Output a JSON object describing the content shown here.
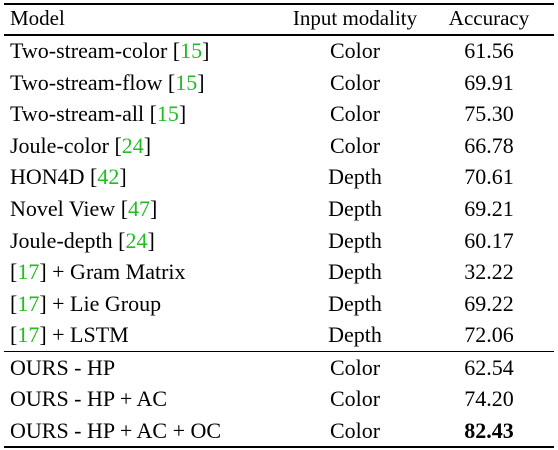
{
  "header": {
    "model": "Model",
    "modality": "Input modality",
    "accuracy": "Accuracy"
  },
  "baselines": [
    {
      "pre": "Two-stream-color [",
      "ref": "15",
      "post": "]",
      "modality": "Color",
      "accuracy": "61.56"
    },
    {
      "pre": "Two-stream-flow [",
      "ref": "15",
      "post": "]",
      "modality": "Color",
      "accuracy": "69.91"
    },
    {
      "pre": "Two-stream-all [",
      "ref": "15",
      "post": "]",
      "modality": "Color",
      "accuracy": "75.30"
    },
    {
      "pre": "Joule-color [",
      "ref": "24",
      "post": "]",
      "modality": "Color",
      "accuracy": "66.78"
    },
    {
      "pre": "HON4D [",
      "ref": "42",
      "post": "]",
      "modality": "Depth",
      "accuracy": "70.61"
    },
    {
      "pre": "Novel View [",
      "ref": "47",
      "post": "]",
      "modality": "Depth",
      "accuracy": "69.21"
    },
    {
      "pre": "Joule-depth [",
      "ref": "24",
      "post": "]",
      "modality": "Depth",
      "accuracy": "60.17"
    },
    {
      "pre": "[",
      "ref": "17",
      "post": "] + Gram Matrix",
      "modality": "Depth",
      "accuracy": "32.22"
    },
    {
      "pre": "[",
      "ref": "17",
      "post": "] + Lie Group",
      "modality": "Depth",
      "accuracy": "69.22"
    },
    {
      "pre": "[",
      "ref": "17",
      "post": "] + LSTM",
      "modality": "Depth",
      "accuracy": "72.06"
    }
  ],
  "ours": [
    {
      "model": "OURS - HP",
      "modality": "Color",
      "accuracy": "62.54"
    },
    {
      "model": "OURS - HP + AC",
      "modality": "Color",
      "accuracy": "74.20"
    },
    {
      "model": "OURS - HP + AC + OC",
      "modality": "Color",
      "accuracy": "82.43"
    }
  ]
}
